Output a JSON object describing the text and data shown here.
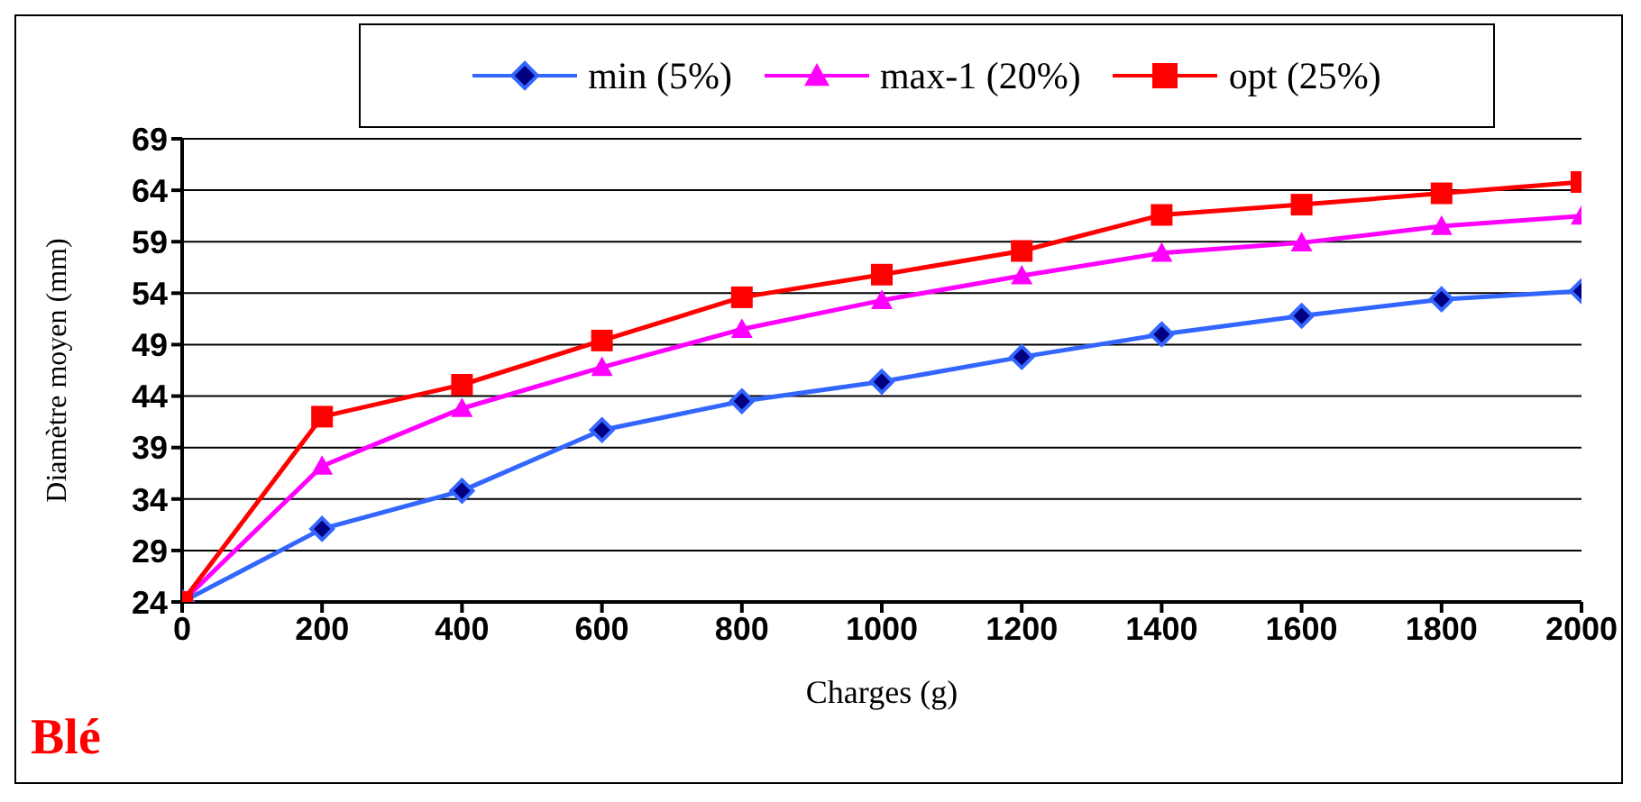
{
  "chart_data": {
    "type": "line",
    "xlabel": "Charges (g)",
    "ylabel": "Diamètre moyen  (mm)",
    "annotations": [
      "Blé"
    ],
    "x": [
      0,
      200,
      400,
      600,
      800,
      1000,
      1200,
      1400,
      1600,
      1800,
      2000
    ],
    "xlim": [
      0,
      2000
    ],
    "xticks": [
      0,
      200,
      400,
      600,
      800,
      1000,
      1200,
      1400,
      1600,
      1800,
      2000
    ],
    "ylim": [
      24,
      69
    ],
    "yticks": [
      24,
      29,
      34,
      39,
      44,
      49,
      54,
      59,
      64,
      69
    ],
    "grid": "y",
    "legend": "top",
    "series": [
      {
        "name": "min (5%)",
        "color": "#3366ff",
        "marker": "diamond",
        "values": [
          24,
          31.1,
          34.8,
          40.7,
          43.5,
          45.4,
          47.8,
          50.0,
          51.8,
          53.4,
          54.2
        ]
      },
      {
        "name": "max-1 (20%)",
        "color": "#ff00ff",
        "marker": "triangle",
        "values": [
          24,
          37.2,
          42.8,
          46.8,
          50.5,
          53.3,
          55.7,
          57.9,
          58.9,
          60.5,
          61.5
        ]
      },
      {
        "name": "opt (25%)",
        "color": "#ff0000",
        "marker": "square",
        "values": [
          24,
          42.0,
          45.1,
          49.4,
          53.6,
          55.8,
          58.1,
          61.6,
          62.6,
          63.7,
          64.8
        ]
      }
    ]
  }
}
